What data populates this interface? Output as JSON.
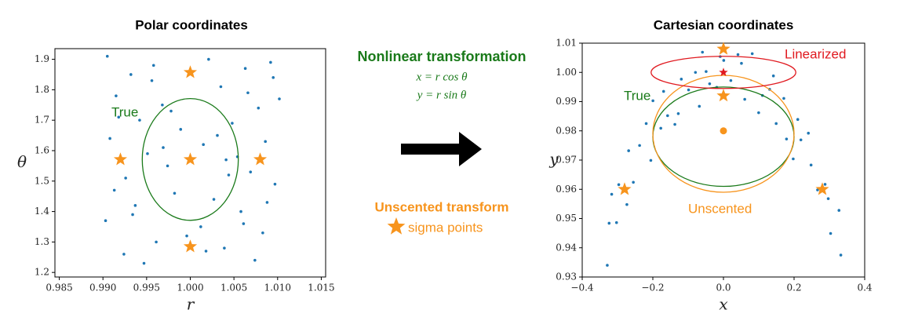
{
  "middle": {
    "heading": "Nonlinear transformation",
    "equations": [
      "x = r cos θ",
      "y = r sin θ"
    ],
    "heading_color": "#1a7a1a",
    "method": "Unscented transform",
    "legend": "sigma points",
    "method_color": "#f7941d"
  },
  "chart_data": [
    {
      "type": "scatter",
      "title": "Polar coordinates",
      "xlabel": "r",
      "ylabel": "θ",
      "xlim": [
        0.9845,
        1.0155
      ],
      "ylim": [
        1.185,
        1.935
      ],
      "xticks": [
        0.985,
        {
          "value": 0.99,
          "label": "0.990"
        },
        0.995,
        {
          "value": 1.0,
          "label": "1.000"
        },
        1.005,
        {
          "value": 1.01,
          "label": "1.010"
        },
        1.015
      ],
      "yticks": [
        1.2,
        1.3,
        1.4,
        1.5,
        1.6,
        1.7,
        1.8,
        1.9
      ],
      "series": [
        {
          "color": "#1f77b4",
          "x": [
            0.9905,
            0.9932,
            0.9958,
            1.0021,
            1.0063,
            1.0092,
            0.9915,
            0.9968,
            1.0035,
            1.0078,
            1.0102,
            0.9942,
            0.9989,
            1.0048,
            0.9908,
            1.0015,
            1.0086,
            0.9951,
            0.9974,
            1.0041,
            1.0069,
            0.9926,
            1.0097,
            0.9982,
            1.0027,
            0.9937,
            1.0058,
            0.9903,
            1.0012,
            1.0083,
            0.9961,
            1.0039,
            0.9924,
            1.0074,
            0.9947,
            0.9996,
            1.0054,
            0.9913,
            1.0095,
            0.9978,
            1.0031,
            0.9934,
            1.0066,
            0.9956,
            1.0018,
            1.0088,
            0.9969,
            1.0044,
            0.9918,
            1.0061
          ],
          "y": [
            1.91,
            1.85,
            1.88,
            1.9,
            1.87,
            1.89,
            1.78,
            1.75,
            1.81,
            1.74,
            1.77,
            1.7,
            1.67,
            1.69,
            1.64,
            1.62,
            1.63,
            1.59,
            1.55,
            1.57,
            1.53,
            1.51,
            1.49,
            1.46,
            1.44,
            1.42,
            1.4,
            1.37,
            1.35,
            1.33,
            1.3,
            1.28,
            1.26,
            1.24,
            1.23,
            1.32,
            1.58,
            1.47,
            1.84,
            1.73,
            1.65,
            1.39,
            1.79,
            1.83,
            1.27,
            1.43,
            1.61,
            1.52,
            1.71,
            1.36
          ]
        }
      ],
      "sigma_points": {
        "color": "#f7941d",
        "x": [
          1.0,
          1.0,
          1.0,
          0.992,
          1.008
        ],
        "y": [
          1.857,
          1.571,
          1.285,
          1.571,
          1.571
        ]
      },
      "ellipses": [
        {
          "label": "True",
          "color": "#1a7a1a",
          "cx": 1.0,
          "cy": 1.571,
          "rx": 0.0055,
          "ry": 0.2
        }
      ],
      "markers": []
    },
    {
      "type": "scatter",
      "title": "Cartesian coordinates",
      "xlabel": "x",
      "ylabel": "y",
      "xlim": [
        -0.4,
        0.4
      ],
      "ylim": [
        0.93,
        1.01
      ],
      "xticks": [
        {
          "value": -0.4,
          "label": "−0.4"
        },
        {
          "value": -0.2,
          "label": "−0.2"
        },
        {
          "value": 0,
          "label": "0.0"
        },
        0.2,
        0.4
      ],
      "yticks": [
        0.93,
        0.94,
        0.95,
        0.96,
        0.97,
        0.98,
        0.99,
        {
          "value": 1.0,
          "label": "1.00"
        },
        1.01
      ],
      "series": [
        {
          "color": "#1f77b4",
          "x": [
            -0.329,
            -0.2735,
            -0.3028,
            -0.3238,
            -0.2965,
            -0.3165,
            -0.2057,
            -0.1774,
            -0.2375,
            -0.1695,
            -0.1997,
            -0.1279,
            -0.0987,
            -0.1193,
            -0.0683,
            -0.0491,
            -0.0595,
            -0.0189,
            0.0209,
            0.0008,
            0.0411,
            0.0603,
            0.0815,
            0.1104,
            0.1308,
            0.1493,
            0.171,
            0.1976,
            0.2193,
            0.2405,
            0.2665,
            0.2878,
            0.3035,
            0.3272,
            0.3324,
            0.2481,
            -0.0092,
            0.0997,
            -0.2685,
            -0.1582,
            -0.0793,
            0.1786,
            -0.2188,
            -0.2552,
            0.2968,
            0.1415,
            -0.0391,
            0.051,
            -0.1376,
            0.2105
          ],
          "y": [
            0.934,
            0.9548,
            0.9486,
            0.9484,
            0.9616,
            0.9583,
            0.9699,
            0.9809,
            0.975,
            0.9935,
            0.9903,
            0.9859,
            0.994,
            0.9977,
            0.9884,
            1.0003,
            1.0069,
            0.9949,
            0.9972,
            1.0041,
            1.0061,
            0.9908,
            1.0064,
            0.9921,
            0.9942,
            0.9825,
            0.9911,
            0.9704,
            0.9769,
            0.9792,
            0.9598,
            0.9617,
            0.9449,
            0.9528,
            0.9375,
            0.9683,
            1.0054,
            0.9862,
            0.9732,
            0.9852,
            1.0,
            0.9772,
            0.9825,
            0.9624,
            0.9568,
            0.9988,
            0.9961,
            1.0031,
            0.9822,
            0.9839
          ]
        }
      ],
      "sigma_points": {
        "color": "#f7941d",
        "x": [
          0,
          0,
          -0.28,
          0.28
        ],
        "y": [
          1.008,
          0.992,
          0.96,
          0.96
        ]
      },
      "ellipses": [
        {
          "label": "True",
          "color": "#1a7a1a",
          "cx": 0,
          "cy": 0.978,
          "rx": 0.2,
          "ry": 0.017
        },
        {
          "label": "Unscented",
          "color": "#f7941d",
          "cx": 0,
          "cy": 0.979,
          "rx": 0.2,
          "ry": 0.02
        },
        {
          "label": "Linearized",
          "color": "#e0191f",
          "cx": 0,
          "cy": 1.0,
          "rx": 0.205,
          "ry": 0.0055
        }
      ],
      "markers": [
        {
          "color": "#f7941d",
          "x": 0,
          "y": 0.98,
          "shape": "circle"
        },
        {
          "color": "#e0191f",
          "x": 0,
          "y": 1.0,
          "shape": "star"
        }
      ]
    }
  ]
}
